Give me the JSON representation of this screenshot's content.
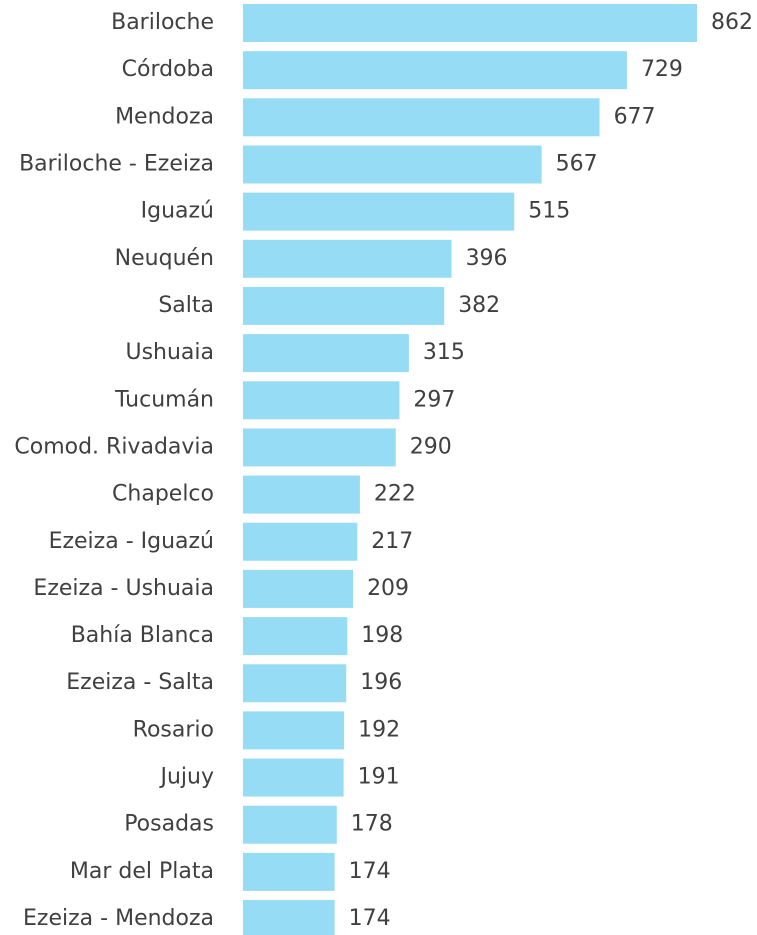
{
  "chart_data": {
    "type": "bar",
    "orientation": "horizontal",
    "color": "#97dcf5",
    "categories": [
      "Bariloche",
      "Córdoba",
      "Mendoza",
      "Bariloche - Ezeiza",
      "Iguazú",
      "Neuquén",
      "Salta",
      "Ushuaia",
      "Tucumán",
      "Comod. Rivadavia",
      "Chapelco",
      "Ezeiza - Iguazú",
      "Ezeiza - Ushuaia",
      "Bahía Blanca",
      "Ezeiza - Salta",
      "Rosario",
      "Jujuy",
      "Posadas",
      "Mar del Plata",
      "Ezeiza - Mendoza"
    ],
    "values": [
      862,
      729,
      677,
      567,
      515,
      396,
      382,
      315,
      297,
      290,
      222,
      217,
      209,
      198,
      196,
      192,
      191,
      178,
      174,
      174
    ]
  }
}
